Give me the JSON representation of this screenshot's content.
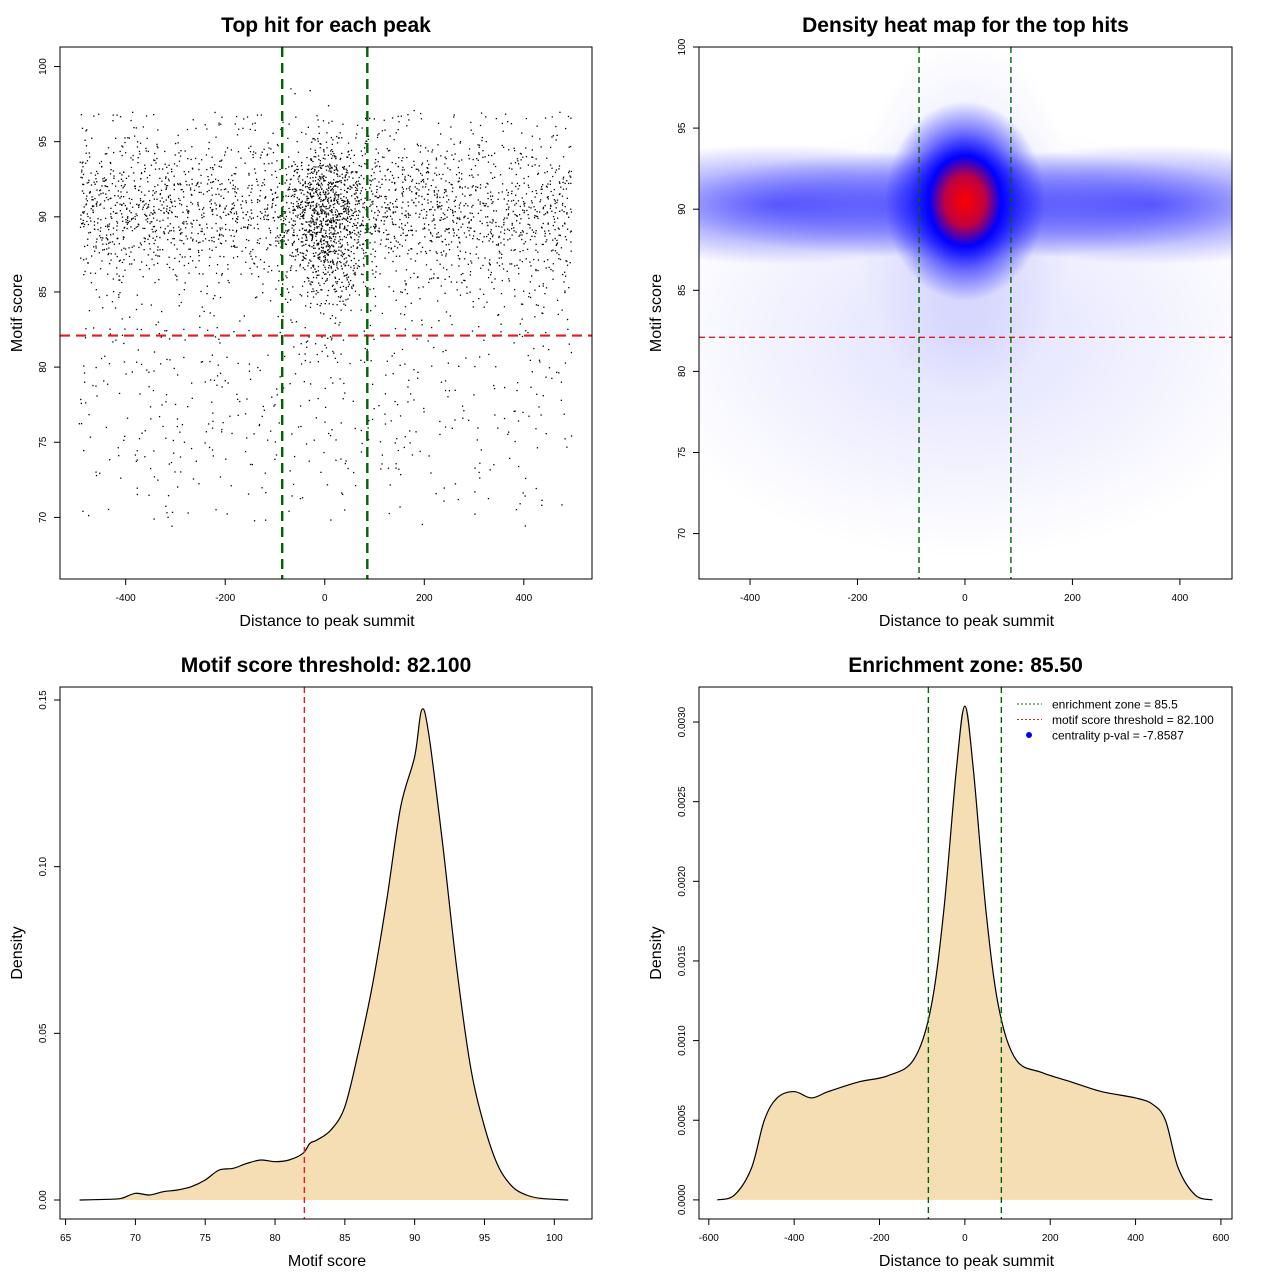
{
  "colors": {
    "threshold": "#e41a1c",
    "zone": "#006400",
    "fill": "#f5deb3",
    "heat_low": "#0000ff",
    "heat_high": "#ff0000",
    "point": "#000000",
    "legend_point": "#0000ff"
  },
  "chart_data": [
    {
      "type": "scatter",
      "title": "Top hit for each peak",
      "xlabel": "Distance to peak summit",
      "ylabel": "Motif score",
      "xlim": [
        -532,
        537
      ],
      "ylim": [
        65.9,
        101.3
      ],
      "xticks": [
        -400,
        -200,
        0,
        200,
        400
      ],
      "yticks": [
        70,
        75,
        80,
        85,
        90,
        95,
        100
      ],
      "hline": 82.1,
      "vlines": [
        -85.5,
        85.5
      ],
      "points_approx": 4000,
      "point_clusters": [
        {
          "x_center": 0,
          "x_sd": 40,
          "y_center": 90.5,
          "y_sd": 2.5,
          "weight": 0.22
        },
        {
          "x_range": [
            -495,
            495
          ],
          "y_center": 90.3,
          "y_sd": 2.2,
          "weight": 0.48
        },
        {
          "x_range": [
            -495,
            495
          ],
          "y_range": [
            69,
            97
          ],
          "weight": 0.3
        }
      ]
    },
    {
      "type": "heatmap",
      "title": "Density heat map for the top hits",
      "xlabel": "Distance to peak summit",
      "ylabel": "Motif score",
      "xlim": [
        -495,
        497
      ],
      "ylim": [
        67.2,
        100
      ],
      "xticks": [
        -400,
        -200,
        0,
        200,
        400
      ],
      "yticks": [
        70,
        75,
        80,
        85,
        90,
        95,
        100
      ],
      "hline": 82.1,
      "vlines": [
        -85.5,
        85.5
      ],
      "hotspot": {
        "x": 0,
        "y": 90.5
      }
    },
    {
      "type": "area",
      "title": "Motif score threshold: 82.100",
      "xlabel": "Motif score",
      "ylabel": "Density",
      "xlim": [
        64.6,
        102.7
      ],
      "ylim": [
        -0.0057,
        0.1539
      ],
      "xticks": [
        65,
        70,
        75,
        80,
        85,
        90,
        95,
        100
      ],
      "yticks": [
        0.0,
        0.05,
        0.1,
        0.15
      ],
      "ytick_labels": [
        "0.00",
        "0.05",
        "0.10",
        "0.15"
      ],
      "vlines": [
        82.1
      ],
      "x": [
        66,
        68,
        69,
        70,
        71,
        72,
        73,
        74,
        75,
        76,
        77,
        78,
        79,
        80,
        81,
        82,
        82.5,
        83,
        84,
        85,
        86,
        87,
        88,
        89,
        90,
        90.5,
        91,
        92,
        93,
        94,
        95,
        96,
        97,
        98,
        99,
        101
      ],
      "y": [
        0,
        0.0002,
        0.0005,
        0.002,
        0.0015,
        0.0025,
        0.003,
        0.004,
        0.006,
        0.009,
        0.0095,
        0.011,
        0.012,
        0.0115,
        0.012,
        0.014,
        0.017,
        0.018,
        0.021,
        0.028,
        0.045,
        0.065,
        0.09,
        0.118,
        0.133,
        0.147,
        0.14,
        0.107,
        0.07,
        0.04,
        0.022,
        0.01,
        0.004,
        0.0015,
        0.0005,
        0
      ]
    },
    {
      "type": "area",
      "title": "Enrichment zone: 85.50",
      "xlabel": "Distance to peak summit",
      "ylabel": "Density",
      "xlim": [
        -623,
        626
      ],
      "ylim": [
        -0.00012,
        0.00322
      ],
      "xticks": [
        -600,
        -400,
        -200,
        0,
        200,
        400,
        600
      ],
      "yticks": [
        0,
        0.0005,
        0.001,
        0.0015,
        0.002,
        0.0025,
        0.003
      ],
      "ytick_labels": [
        "0.0000",
        "0.0005",
        "0.0010",
        "0.0015",
        "0.0020",
        "0.0025",
        "0.0030"
      ],
      "vlines": [
        -85.5,
        85.5
      ],
      "x": [
        -580,
        -540,
        -500,
        -470,
        -440,
        -400,
        -360,
        -320,
        -250,
        -180,
        -120,
        -80,
        -50,
        -20,
        0,
        20,
        50,
        80,
        120,
        180,
        250,
        320,
        400,
        440,
        470,
        500,
        540,
        580
      ],
      "y": [
        0,
        3e-05,
        0.0002,
        0.0005,
        0.00064,
        0.00068,
        0.00064,
        0.00068,
        0.00074,
        0.00078,
        0.00088,
        0.0012,
        0.0018,
        0.0027,
        0.0031,
        0.0027,
        0.0018,
        0.0012,
        0.00088,
        0.0008,
        0.00074,
        0.00068,
        0.00064,
        0.0006,
        0.0005,
        0.0002,
        3e-05,
        0
      ],
      "legend": [
        {
          "label": "enrichment zone = 85.5",
          "style": "dotted-green"
        },
        {
          "label": "motif score threshold = 82.100",
          "style": "dotted-red"
        },
        {
          "label": "centrality p-val = -7.8587",
          "style": "blue-point"
        }
      ]
    }
  ]
}
